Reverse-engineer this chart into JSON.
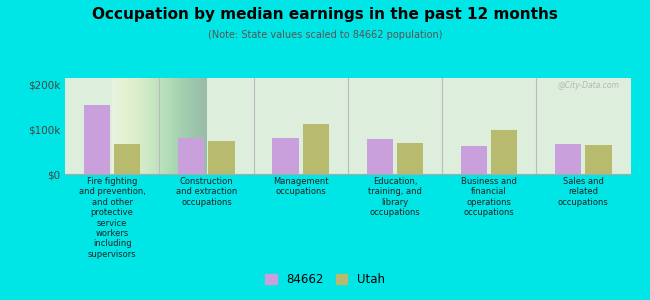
{
  "title": "Occupation by median earnings in the past 12 months",
  "subtitle": "(Note: State values scaled to 84662 population)",
  "background_color": "#00e5e5",
  "plot_bg_color": "#ddeedd",
  "categories": [
    "Fire fighting\nand prevention,\nand other\nprotective\nservice\nworkers\nincluding\nsupervisors",
    "Construction\nand extraction\noccupations",
    "Management\noccupations",
    "Education,\ntraining, and\nlibrary\noccupations",
    "Business and\nfinancial\noperations\noccupations",
    "Sales and\nrelated\noccupations"
  ],
  "values_84662": [
    155000,
    80000,
    80000,
    78000,
    62000,
    68000
  ],
  "values_utah": [
    68000,
    75000,
    112000,
    70000,
    98000,
    65000
  ],
  "color_84662": "#c9a0dc",
  "color_utah": "#b8bb6e",
  "yticks": [
    0,
    100000,
    200000
  ],
  "ytick_labels": [
    "$0",
    "$100k",
    "$200k"
  ],
  "ylim": [
    0,
    215000
  ],
  "legend_label_84662": "84662",
  "legend_label_utah": "Utah",
  "watermark": "@City-Data.com"
}
